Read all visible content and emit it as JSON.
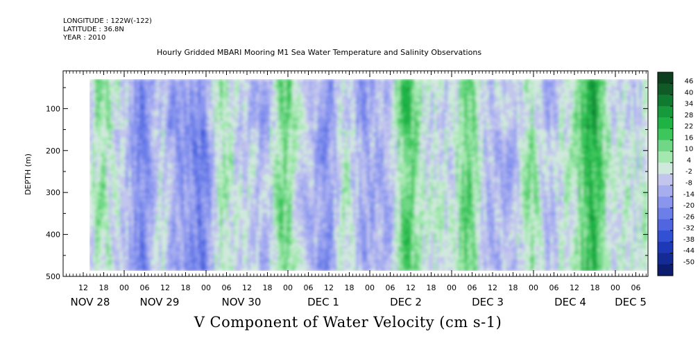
{
  "header": {
    "longitude": "LONGITUDE : 122W(-122)",
    "latitude": "LATITUDE : 36.8N",
    "year": "YEAR : 2010",
    "title": "Hourly Gridded MBARI Mooring M1 Sea Water Temperature and Salinity Observations"
  },
  "chart_data": {
    "type": "heatmap",
    "title": "Hourly Gridded MBARI Mooring M1 Sea Water Temperature and Salinity Observations",
    "xlabel": "V Component of Water Velocity (cm s-1)",
    "ylabel": "DEPTH (m)",
    "ylim": [
      500,
      10
    ],
    "y_reversed": true,
    "y_ticks": [
      100,
      200,
      300,
      400,
      500
    ],
    "x_hour_ticks": [
      "12",
      "18",
      "00",
      "06",
      "12",
      "18",
      "00",
      "06",
      "12",
      "18",
      "00",
      "06",
      "12",
      "18",
      "00",
      "06",
      "12",
      "18",
      "00",
      "06",
      "12",
      "18",
      "00",
      "06",
      "12",
      "18",
      "00",
      "06"
    ],
    "x_date_labels": [
      "NOV 28",
      "NOV 29",
      "NOV 30",
      "DEC  1",
      "DEC  2",
      "DEC  3",
      "DEC  4",
      "DEC  5"
    ],
    "colorbar": {
      "levels": [
        46,
        40,
        34,
        28,
        22,
        16,
        10,
        4,
        -2,
        -8,
        -14,
        -20,
        -26,
        -32,
        -38,
        -44,
        -50
      ],
      "colors": [
        "#0b3f1d",
        "#0f5a27",
        "#117a31",
        "#169a3b",
        "#1fb346",
        "#3cc65c",
        "#6fd786",
        "#a3e8ae",
        "#d0e9dd",
        "#c3c6ec",
        "#a7aef0",
        "#8a96ee",
        "#6c7ee8",
        "#4f66e0",
        "#3250d3",
        "#1e39b8",
        "#142a94",
        "#0c1c6e"
      ]
    },
    "day_profile_mean": [
      {
        "day": "NOV 28",
        "v": -10
      },
      {
        "day": "NOV 29",
        "v": -14
      },
      {
        "day": "NOV 30",
        "v": -12
      },
      {
        "day": "DEC  1",
        "v": 2
      },
      {
        "day": "DEC  2",
        "v": -2
      },
      {
        "day": "DEC  3",
        "v": 4
      },
      {
        "day": "DEC  4",
        "v": 6
      },
      {
        "day": "DEC  5",
        "v": -6
      }
    ],
    "grid": false
  }
}
